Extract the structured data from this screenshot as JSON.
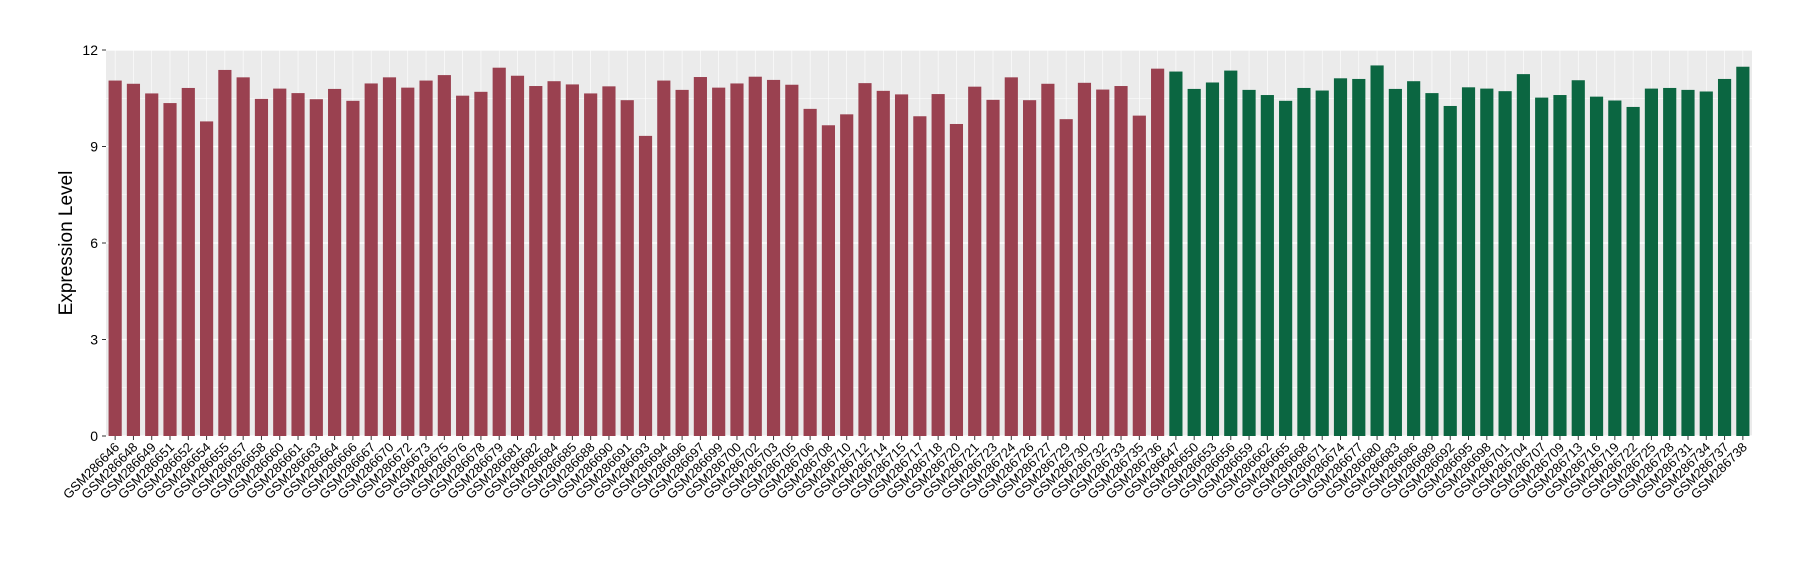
{
  "chart_data": {
    "type": "bar",
    "title": "",
    "xlabel": "",
    "ylabel": "Expression Level",
    "ylim": [
      0,
      12
    ],
    "yticks": [
      0,
      3,
      6,
      9,
      12
    ],
    "grid": true,
    "legend": "none",
    "colors": {
      "group1": "#9A4150",
      "group2": "#0B6641",
      "panel": "#EBEBEB",
      "gridline": "#FFFFFF",
      "text": "#000000"
    },
    "categories": [
      "GSM286646",
      "GSM286648",
      "GSM286649",
      "GSM286651",
      "GSM286652",
      "GSM286654",
      "GSM286655",
      "GSM286657",
      "GSM286658",
      "GSM286660",
      "GSM286661",
      "GSM286663",
      "GSM286664",
      "GSM286666",
      "GSM286667",
      "GSM286670",
      "GSM286672",
      "GSM286673",
      "GSM286675",
      "GSM286676",
      "GSM286678",
      "GSM286679",
      "GSM286681",
      "GSM286682",
      "GSM286684",
      "GSM286685",
      "GSM286688",
      "GSM286690",
      "GSM286691",
      "GSM286693",
      "GSM286694",
      "GSM286696",
      "GSM286697",
      "GSM286699",
      "GSM286700",
      "GSM286702",
      "GSM286703",
      "GSM286705",
      "GSM286706",
      "GSM286708",
      "GSM286710",
      "GSM286712",
      "GSM286714",
      "GSM286715",
      "GSM286717",
      "GSM286718",
      "GSM286720",
      "GSM286721",
      "GSM286723",
      "GSM286724",
      "GSM286726",
      "GSM286727",
      "GSM286729",
      "GSM286730",
      "GSM286732",
      "GSM286733",
      "GSM286735",
      "GSM286736",
      "GSM286647",
      "GSM286650",
      "GSM286653",
      "GSM286656",
      "GSM286659",
      "GSM286662",
      "GSM286665",
      "GSM286668",
      "GSM286671",
      "GSM286674",
      "GSM286677",
      "GSM286680",
      "GSM286683",
      "GSM286686",
      "GSM286689",
      "GSM286692",
      "GSM286695",
      "GSM286698",
      "GSM286701",
      "GSM286704",
      "GSM286707",
      "GSM286709",
      "GSM286713",
      "GSM286716",
      "GSM286719",
      "GSM286722",
      "GSM286725",
      "GSM286728",
      "GSM286731",
      "GSM286734",
      "GSM286737",
      "GSM286738"
    ],
    "values": [
      11.05,
      10.95,
      10.65,
      10.35,
      10.82,
      9.78,
      11.38,
      11.15,
      10.48,
      10.8,
      10.66,
      10.47,
      10.79,
      10.42,
      10.96,
      11.15,
      10.83,
      11.05,
      11.22,
      10.58,
      10.7,
      11.45,
      11.2,
      10.88,
      11.03,
      10.93,
      10.65,
      10.87,
      10.44,
      9.33,
      11.05,
      10.76,
      11.16,
      10.83,
      10.96,
      11.17,
      11.07,
      10.92,
      10.17,
      9.66,
      10.0,
      10.97,
      10.73,
      10.62,
      9.94,
      10.63,
      9.7,
      10.86,
      10.45,
      11.15,
      10.44,
      10.95,
      9.85,
      10.98,
      10.77,
      10.88,
      9.96,
      11.42,
      11.33,
      10.79,
      10.99,
      11.36,
      10.76,
      10.6,
      10.42,
      10.82,
      10.74,
      11.12,
      11.1,
      11.52,
      10.79,
      11.03,
      10.66,
      10.26,
      10.84,
      10.8,
      10.72,
      11.25,
      10.52,
      10.6,
      11.06,
      10.55,
      10.43,
      10.23,
      10.8,
      10.82,
      10.76,
      10.71,
      11.1,
      11.48
    ],
    "groups": [
      1,
      1,
      1,
      1,
      1,
      1,
      1,
      1,
      1,
      1,
      1,
      1,
      1,
      1,
      1,
      1,
      1,
      1,
      1,
      1,
      1,
      1,
      1,
      1,
      1,
      1,
      1,
      1,
      1,
      1,
      1,
      1,
      1,
      1,
      1,
      1,
      1,
      1,
      1,
      1,
      1,
      1,
      1,
      1,
      1,
      1,
      1,
      1,
      1,
      1,
      1,
      1,
      1,
      1,
      1,
      1,
      1,
      1,
      2,
      2,
      2,
      2,
      2,
      2,
      2,
      2,
      2,
      2,
      2,
      2,
      2,
      2,
      2,
      2,
      2,
      2,
      2,
      2,
      2,
      2,
      2,
      2,
      2,
      2,
      2,
      2,
      2,
      2,
      2,
      2
    ]
  }
}
